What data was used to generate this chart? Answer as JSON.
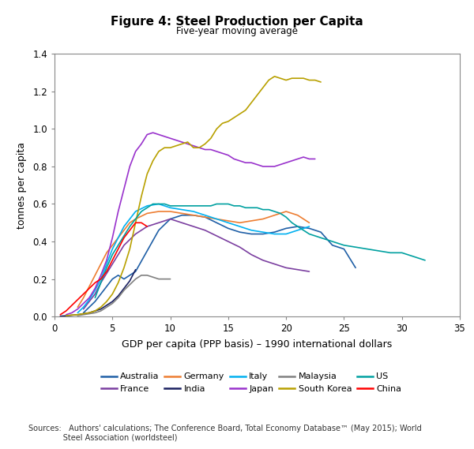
{
  "title": "Figure 4: Steel Production per Capita",
  "subtitle": "Five-year moving average",
  "xlabel": "GDP per capita (PPP basis) – 1990 international dollars",
  "ylabel": "tonnes per capita",
  "xlim": [
    0,
    35
  ],
  "ylim": [
    0,
    1.4
  ],
  "xticks": [
    0,
    5,
    10,
    15,
    20,
    25,
    30,
    35
  ],
  "yticks": [
    0.0,
    0.2,
    0.4,
    0.6,
    0.8,
    1.0,
    1.2,
    1.4
  ],
  "series": {
    "Australia": {
      "color": "#1f5fa6",
      "x": [
        2.5,
        3.0,
        3.5,
        4.0,
        4.5,
        5.0,
        5.5,
        6.0,
        6.5,
        7.0,
        8.0,
        9.0,
        10.0,
        11.0,
        12.0,
        13.0,
        14.0,
        15.0,
        16.0,
        17.0,
        18.0,
        19.0,
        20.0,
        21.0,
        22.0,
        23.0,
        24.0,
        25.0,
        26.0
      ],
      "y": [
        0.02,
        0.05,
        0.08,
        0.12,
        0.16,
        0.2,
        0.22,
        0.2,
        0.22,
        0.24,
        0.35,
        0.46,
        0.52,
        0.54,
        0.54,
        0.53,
        0.5,
        0.47,
        0.45,
        0.44,
        0.44,
        0.45,
        0.47,
        0.48,
        0.47,
        0.45,
        0.38,
        0.36,
        0.26
      ]
    },
    "France": {
      "color": "#7b3fa0",
      "x": [
        2.5,
        3.0,
        3.5,
        4.0,
        5.0,
        6.0,
        7.0,
        8.0,
        9.0,
        10.0,
        11.0,
        12.0,
        13.0,
        14.0,
        15.0,
        16.0,
        17.0,
        18.0,
        19.0,
        20.0,
        21.0,
        22.0
      ],
      "y": [
        0.04,
        0.08,
        0.12,
        0.18,
        0.28,
        0.38,
        0.44,
        0.48,
        0.5,
        0.52,
        0.5,
        0.48,
        0.46,
        0.43,
        0.4,
        0.37,
        0.33,
        0.3,
        0.28,
        0.26,
        0.25,
        0.24
      ]
    },
    "Germany": {
      "color": "#ed7d31",
      "x": [
        2.0,
        2.5,
        3.0,
        3.5,
        4.0,
        4.5,
        5.0,
        5.5,
        6.0,
        6.5,
        7.0,
        8.0,
        9.0,
        10.0,
        11.0,
        12.0,
        13.0,
        14.0,
        15.0,
        16.0,
        17.0,
        18.0,
        19.0,
        20.0,
        21.0,
        22.0
      ],
      "y": [
        0.05,
        0.1,
        0.16,
        0.22,
        0.28,
        0.34,
        0.38,
        0.42,
        0.46,
        0.5,
        0.52,
        0.55,
        0.56,
        0.56,
        0.55,
        0.54,
        0.53,
        0.52,
        0.51,
        0.5,
        0.51,
        0.52,
        0.54,
        0.56,
        0.54,
        0.5
      ]
    },
    "India": {
      "color": "#1a2060",
      "x": [
        0.5,
        1.0,
        1.5,
        2.0,
        2.5,
        3.0,
        3.5,
        4.0,
        4.5,
        5.0,
        5.5,
        6.0,
        6.5,
        7.0
      ],
      "y": [
        0.002,
        0.004,
        0.007,
        0.01,
        0.015,
        0.02,
        0.03,
        0.04,
        0.06,
        0.08,
        0.11,
        0.15,
        0.19,
        0.25
      ]
    },
    "Italy": {
      "color": "#00b0f0",
      "x": [
        2.0,
        2.5,
        3.0,
        3.5,
        4.0,
        4.5,
        5.0,
        5.5,
        6.0,
        6.5,
        7.0,
        8.0,
        9.0,
        10.0,
        11.0,
        12.0,
        13.0,
        14.0,
        15.0,
        16.0,
        17.0,
        18.0,
        19.0,
        20.0,
        21.0,
        22.0
      ],
      "y": [
        0.02,
        0.05,
        0.09,
        0.14,
        0.2,
        0.28,
        0.36,
        0.42,
        0.48,
        0.52,
        0.56,
        0.59,
        0.6,
        0.58,
        0.57,
        0.56,
        0.54,
        0.52,
        0.5,
        0.48,
        0.46,
        0.45,
        0.44,
        0.44,
        0.46,
        0.48
      ]
    },
    "Japan": {
      "color": "#9932cc",
      "x": [
        1.0,
        1.5,
        2.0,
        2.5,
        3.0,
        3.5,
        4.0,
        4.5,
        5.0,
        5.5,
        6.0,
        6.5,
        7.0,
        7.5,
        8.0,
        8.5,
        9.0,
        9.5,
        10.0,
        10.5,
        11.0,
        11.5,
        12.0,
        12.5,
        13.0,
        13.5,
        14.0,
        14.5,
        15.0,
        15.5,
        16.0,
        16.5,
        17.0,
        17.5,
        18.0,
        18.5,
        19.0,
        19.5,
        20.0,
        20.5,
        21.0,
        21.5,
        22.0,
        22.5
      ],
      "y": [
        0.01,
        0.02,
        0.04,
        0.07,
        0.1,
        0.15,
        0.22,
        0.3,
        0.42,
        0.56,
        0.68,
        0.8,
        0.88,
        0.92,
        0.97,
        0.98,
        0.97,
        0.96,
        0.95,
        0.94,
        0.93,
        0.92,
        0.91,
        0.9,
        0.89,
        0.89,
        0.88,
        0.87,
        0.86,
        0.84,
        0.83,
        0.82,
        0.82,
        0.81,
        0.8,
        0.8,
        0.8,
        0.81,
        0.82,
        0.83,
        0.84,
        0.85,
        0.84,
        0.84
      ]
    },
    "Malaysia": {
      "color": "#808080",
      "x": [
        2.0,
        2.5,
        3.0,
        3.5,
        4.0,
        4.5,
        5.0,
        5.5,
        6.0,
        6.5,
        7.0,
        7.5,
        8.0,
        8.5,
        9.0,
        9.5,
        10.0
      ],
      "y": [
        0.005,
        0.01,
        0.015,
        0.02,
        0.03,
        0.05,
        0.07,
        0.1,
        0.14,
        0.17,
        0.2,
        0.22,
        0.22,
        0.21,
        0.2,
        0.2,
        0.2
      ]
    },
    "South Korea": {
      "color": "#b8a000",
      "x": [
        1.0,
        1.5,
        2.0,
        2.5,
        3.0,
        3.5,
        4.0,
        4.5,
        5.0,
        5.5,
        6.0,
        6.5,
        7.0,
        7.5,
        8.0,
        8.5,
        9.0,
        9.5,
        10.0,
        10.5,
        11.0,
        11.5,
        12.0,
        12.5,
        13.0,
        13.5,
        14.0,
        14.5,
        15.0,
        15.5,
        16.0,
        16.5,
        17.0,
        17.5,
        18.0,
        18.5,
        19.0,
        19.5,
        20.0,
        20.5,
        21.0,
        21.5,
        22.0,
        22.5,
        23.0
      ],
      "y": [
        0.005,
        0.008,
        0.01,
        0.015,
        0.02,
        0.03,
        0.05,
        0.08,
        0.12,
        0.18,
        0.26,
        0.36,
        0.5,
        0.64,
        0.76,
        0.83,
        0.88,
        0.9,
        0.9,
        0.91,
        0.92,
        0.93,
        0.9,
        0.9,
        0.92,
        0.95,
        1.0,
        1.03,
        1.04,
        1.06,
        1.08,
        1.1,
        1.14,
        1.18,
        1.22,
        1.26,
        1.28,
        1.27,
        1.26,
        1.27,
        1.27,
        1.27,
        1.26,
        1.26,
        1.25
      ]
    },
    "US": {
      "color": "#00a0a0",
      "x": [
        3.5,
        4.0,
        4.5,
        5.0,
        5.5,
        6.0,
        6.5,
        7.0,
        7.5,
        8.0,
        8.5,
        9.0,
        9.5,
        10.0,
        10.5,
        11.0,
        11.5,
        12.0,
        12.5,
        13.0,
        13.5,
        14.0,
        14.5,
        15.0,
        15.5,
        16.0,
        16.5,
        17.0,
        17.5,
        18.0,
        18.5,
        19.0,
        19.5,
        20.0,
        20.5,
        21.0,
        22.0,
        23.0,
        24.0,
        25.0,
        26.0,
        27.0,
        28.0,
        29.0,
        30.0,
        31.0,
        32.0
      ],
      "y": [
        0.1,
        0.18,
        0.26,
        0.33,
        0.38,
        0.43,
        0.48,
        0.52,
        0.56,
        0.58,
        0.6,
        0.6,
        0.6,
        0.59,
        0.59,
        0.59,
        0.59,
        0.59,
        0.59,
        0.59,
        0.59,
        0.6,
        0.6,
        0.6,
        0.59,
        0.59,
        0.58,
        0.58,
        0.58,
        0.57,
        0.57,
        0.56,
        0.55,
        0.53,
        0.5,
        0.48,
        0.44,
        0.42,
        0.4,
        0.38,
        0.37,
        0.36,
        0.35,
        0.34,
        0.34,
        0.32,
        0.3
      ]
    },
    "China": {
      "color": "#ff0000",
      "x": [
        0.5,
        1.0,
        1.5,
        2.0,
        2.5,
        3.0,
        3.5,
        4.0,
        4.5,
        5.0,
        5.5,
        6.0,
        6.5,
        7.0,
        7.5,
        8.0
      ],
      "y": [
        0.01,
        0.03,
        0.06,
        0.09,
        0.12,
        0.15,
        0.18,
        0.2,
        0.24,
        0.3,
        0.36,
        0.42,
        0.46,
        0.5,
        0.5,
        0.48
      ]
    }
  },
  "legend_row1": [
    "Australia",
    "France",
    "Germany",
    "India",
    "Italy"
  ],
  "legend_row2": [
    "Japan",
    "Malaysia",
    "South Korea",
    "US",
    "China"
  ],
  "legend_colors": {
    "Australia": "#1f5fa6",
    "France": "#7b3fa0",
    "Germany": "#ed7d31",
    "India": "#1a2060",
    "Italy": "#00b0f0",
    "Japan": "#9932cc",
    "Malaysia": "#808080",
    "South Korea": "#b8a000",
    "US": "#00a0a0",
    "China": "#ff0000"
  }
}
